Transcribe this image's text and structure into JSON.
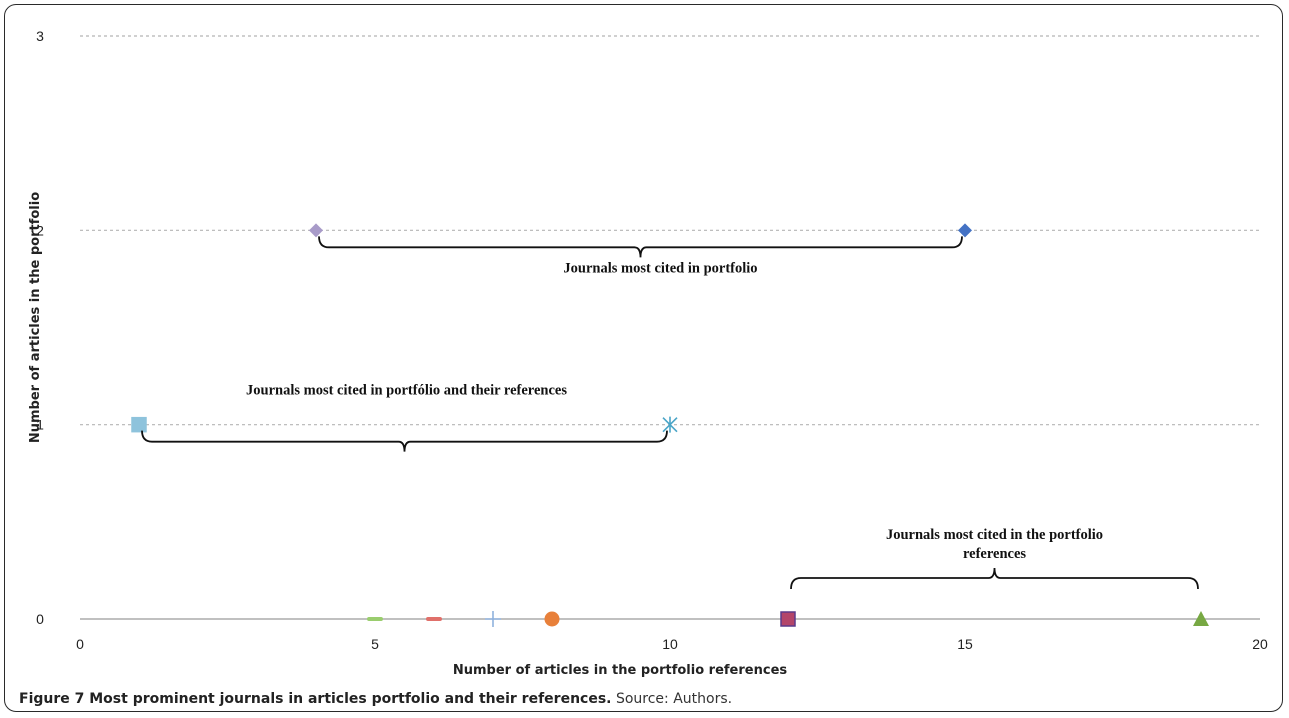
{
  "chart_data": {
    "type": "scatter",
    "xlabel": "Number of articles in the portfolio references",
    "ylabel": "Number of articles in the portfolio",
    "xlim": [
      0,
      20
    ],
    "ylim": [
      0,
      3
    ],
    "x_ticks": [
      "0",
      "5",
      "10",
      "15",
      "20"
    ],
    "y_ticks": [
      "0",
      "1",
      "2",
      "3"
    ],
    "grid": "horizontal dotted",
    "series": [
      {
        "x": 1,
        "y": 1,
        "marker": "square",
        "color": "#8EC3DC"
      },
      {
        "x": 4,
        "y": 2,
        "marker": "diamond",
        "color": "#A89BC9"
      },
      {
        "x": 5,
        "y": 0,
        "marker": "dash",
        "color": "#9ACD6E"
      },
      {
        "x": 6,
        "y": 0,
        "marker": "dash",
        "color": "#E0706A"
      },
      {
        "x": 7,
        "y": 0,
        "marker": "plus",
        "color": "#8FB2DE"
      },
      {
        "x": 8,
        "y": 0,
        "marker": "circle",
        "color": "#E8803A"
      },
      {
        "x": 10,
        "y": 1,
        "marker": "star",
        "color": "#4AA5C7"
      },
      {
        "x": 12,
        "y": 0,
        "marker": "square",
        "color": "#B3456A"
      },
      {
        "x": 15,
        "y": 2,
        "marker": "diamond",
        "color": "#4472C4"
      },
      {
        "x": 19,
        "y": 0,
        "marker": "triangle",
        "color": "#77A843"
      }
    ],
    "annotations": [
      {
        "lines": [
          "Journals most cited in portfolio"
        ],
        "bracket_x": [
          4,
          15
        ],
        "level": 2,
        "bracket_side": "below"
      },
      {
        "lines": [
          "Journals most cited in portfólio and their references"
        ],
        "bracket_x": [
          1,
          10
        ],
        "level": 1,
        "bracket_side": "below"
      },
      {
        "lines": [
          "Journals most cited in the portfolio",
          "references"
        ],
        "bracket_x": [
          12,
          19
        ],
        "level": 0,
        "bracket_side": "above"
      }
    ]
  },
  "caption": {
    "title": "Figure 7 Most prominent journals in articles portfolio and their references.",
    "source": "Source: Authors."
  }
}
